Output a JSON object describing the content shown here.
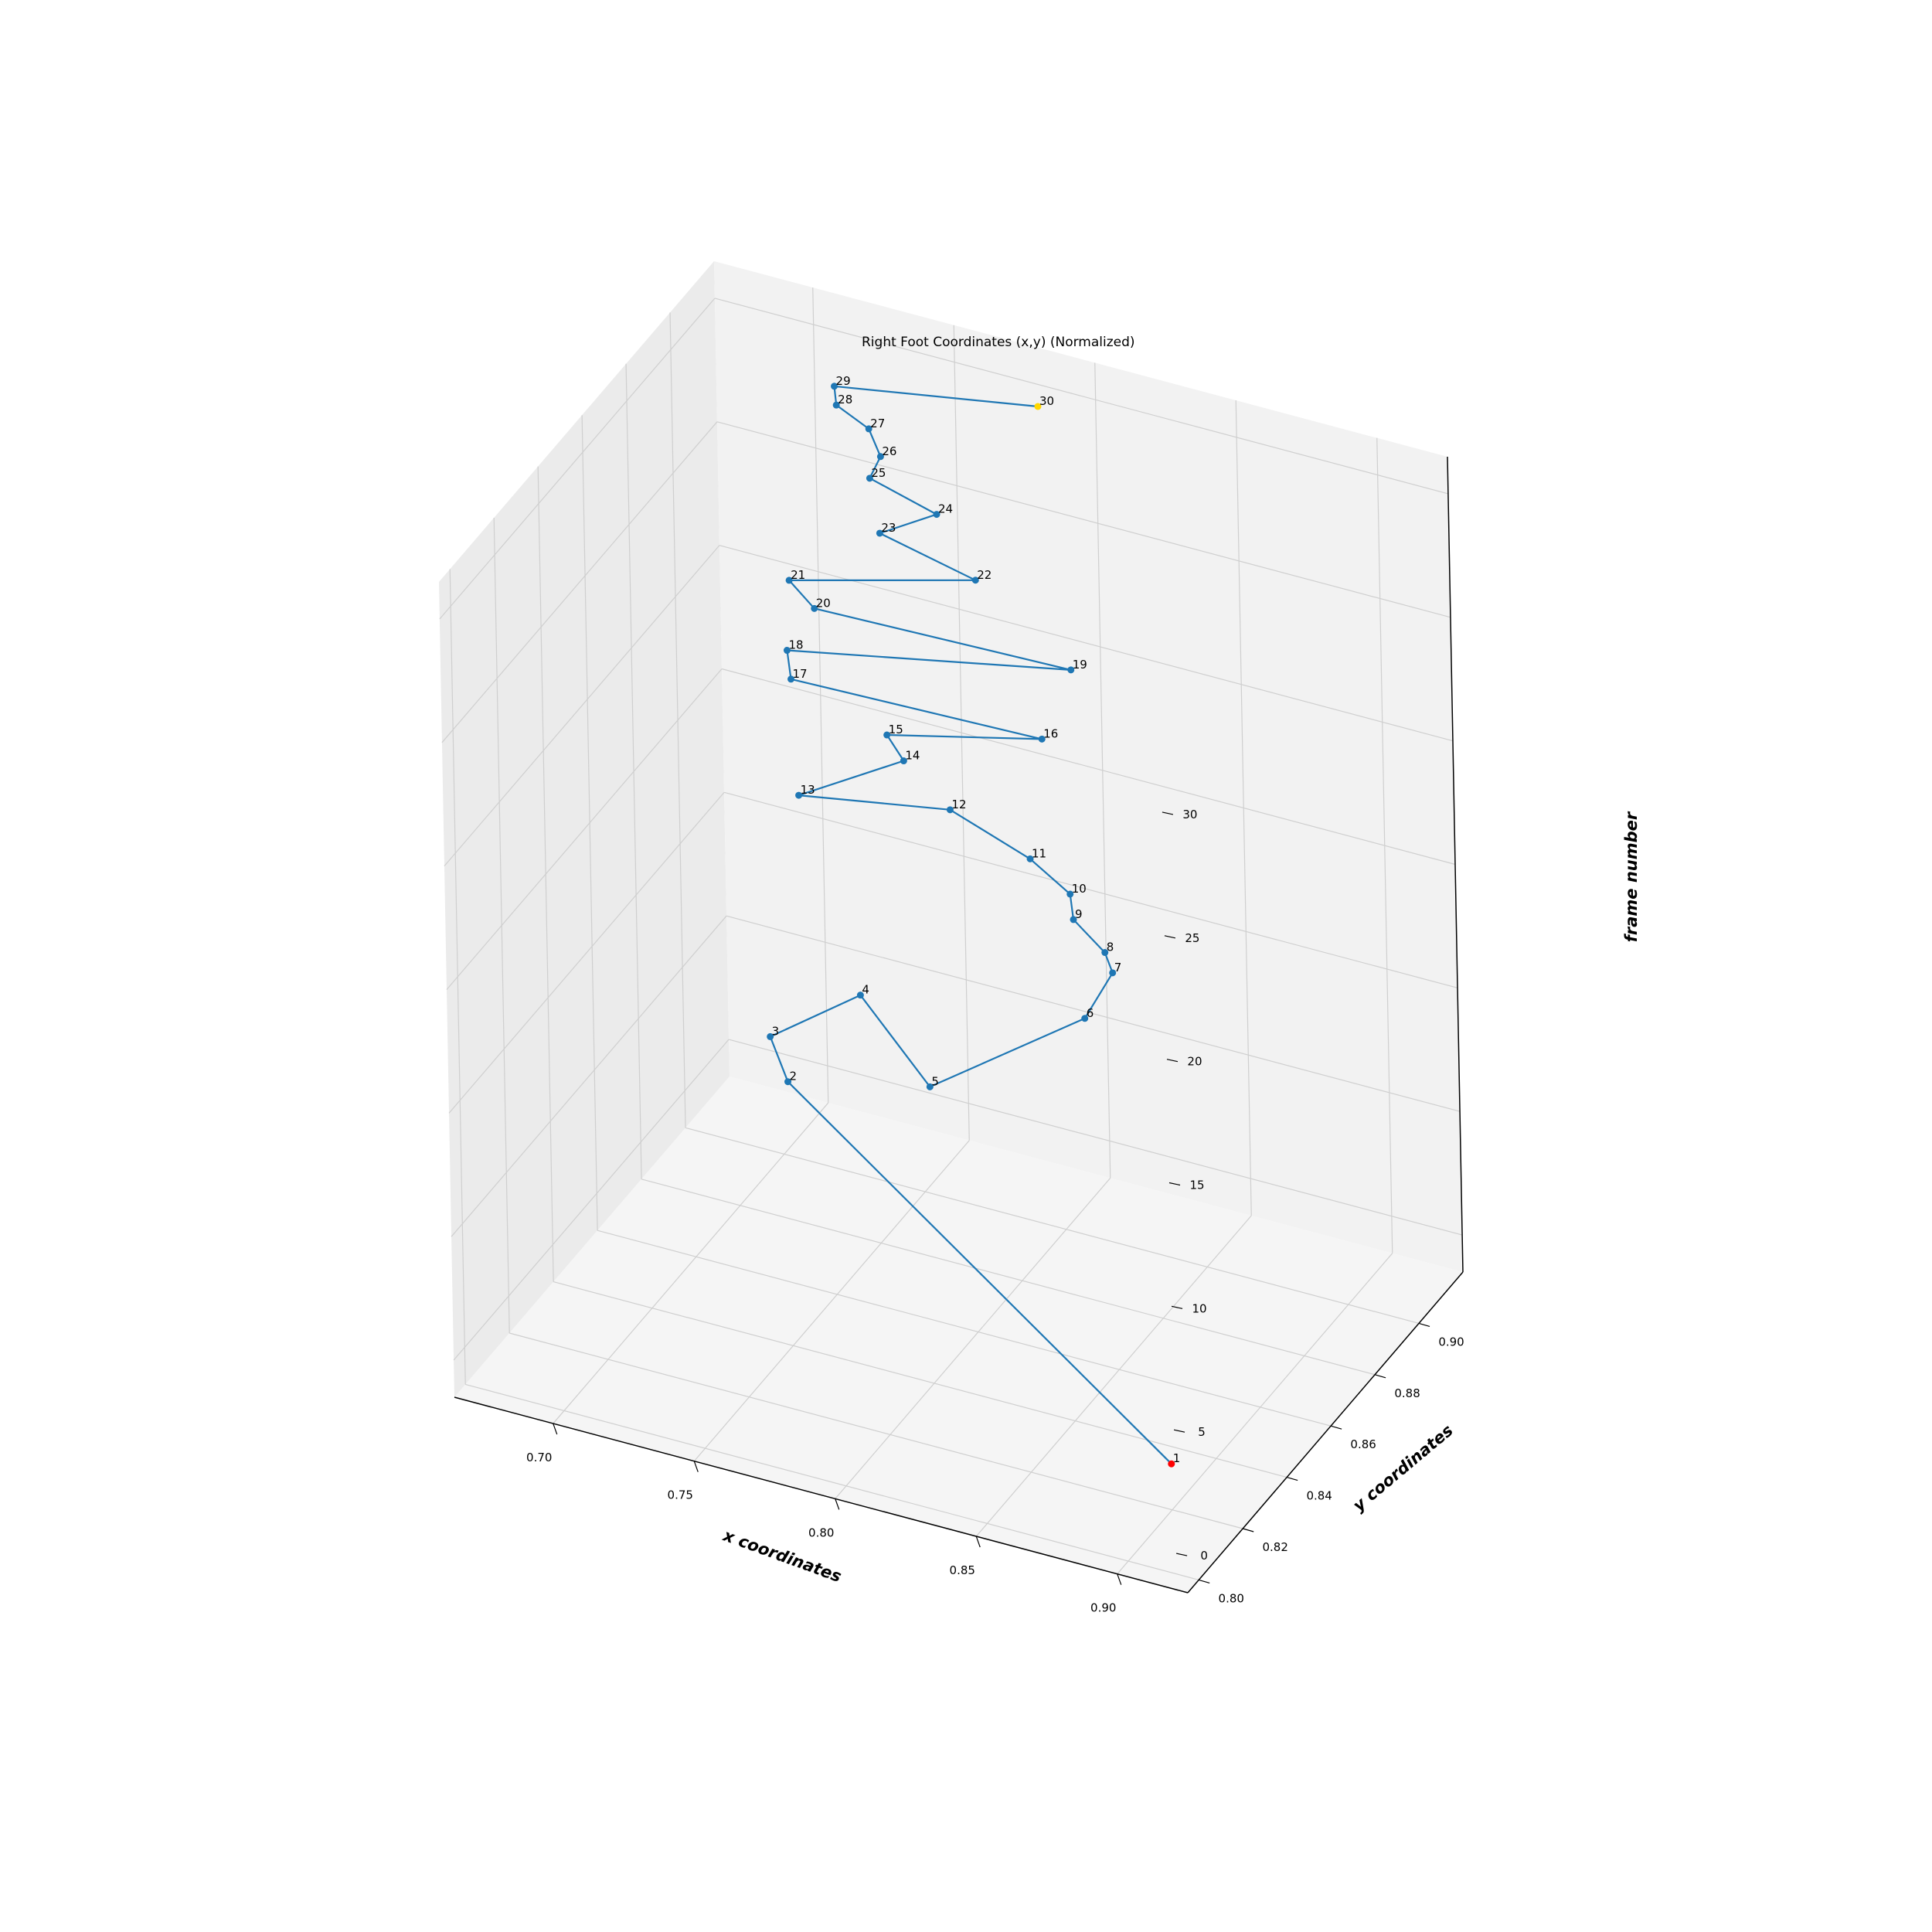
{
  "chart_data": {
    "type": "scatter",
    "projection": "3d",
    "title": "Right Foot Coordinates (x,y) (Normalized)",
    "xlabel": "x coordinates",
    "ylabel": "y coordinates",
    "zlabel": "frame number",
    "xlim": [
      0.665,
      0.925
    ],
    "ylim": [
      0.795,
      0.92
    ],
    "zlim": [
      -1.5,
      31.5
    ],
    "x_ticks": [
      "0.70",
      "0.75",
      "0.80",
      "0.85",
      "0.90"
    ],
    "y_ticks": [
      "0.80",
      "0.82",
      "0.84",
      "0.86",
      "0.88",
      "0.90"
    ],
    "z_ticks": [
      "0",
      "5",
      "10",
      "15",
      "20",
      "25",
      "30"
    ],
    "grid": true,
    "colors": {
      "line": "#1f77b4",
      "points": "#1f77b4",
      "first_point": "#ff0000",
      "last_point": "#ffd700",
      "pane_back": "#f2f2f2",
      "pane_side": "#ebebeb",
      "pane_floor": "#f5f5f5",
      "grid": "#cfcfcf"
    },
    "series": [
      {
        "points": [
          {
            "label": "1",
            "x": 0.904,
            "y": 0.815,
            "z": 1
          },
          {
            "label": "2",
            "x": 0.705,
            "y": 0.896,
            "z": 2
          },
          {
            "label": "3",
            "x": 0.695,
            "y": 0.901,
            "z": 3
          },
          {
            "label": "4",
            "x": 0.717,
            "y": 0.914,
            "z": 4
          },
          {
            "label": "5",
            "x": 0.766,
            "y": 0.883,
            "z": 5
          },
          {
            "label": "6",
            "x": 0.8,
            "y": 0.91,
            "z": 6
          },
          {
            "label": "7",
            "x": 0.803,
            "y": 0.919,
            "z": 7
          },
          {
            "label": "8",
            "x": 0.802,
            "y": 0.917,
            "z": 8
          },
          {
            "label": "9",
            "x": 0.791,
            "y": 0.917,
            "z": 9
          },
          {
            "label": "10",
            "x": 0.79,
            "y": 0.917,
            "z": 10
          },
          {
            "label": "11",
            "x": 0.776,
            "y": 0.917,
            "z": 11
          },
          {
            "label": "12",
            "x": 0.747,
            "y": 0.918,
            "z": 12
          },
          {
            "label": "13",
            "x": 0.706,
            "y": 0.902,
            "z": 13
          },
          {
            "label": "14",
            "x": 0.734,
            "y": 0.914,
            "z": 14
          },
          {
            "label": "15",
            "x": 0.729,
            "y": 0.913,
            "z": 15
          },
          {
            "label": "16",
            "x": 0.781,
            "y": 0.917,
            "z": 16
          },
          {
            "label": "17",
            "x": 0.7,
            "y": 0.907,
            "z": 17
          },
          {
            "label": "18",
            "x": 0.698,
            "y": 0.908,
            "z": 18
          },
          {
            "label": "19",
            "x": 0.791,
            "y": 0.918,
            "z": 19
          },
          {
            "label": "20",
            "x": 0.708,
            "y": 0.908,
            "z": 20
          },
          {
            "label": "21",
            "x": 0.7,
            "y": 0.907,
            "z": 21
          },
          {
            "label": "22",
            "x": 0.76,
            "y": 0.915,
            "z": 22
          },
          {
            "label": "23",
            "x": 0.727,
            "y": 0.914,
            "z": 23
          },
          {
            "label": "24",
            "x": 0.745,
            "y": 0.917,
            "z": 24
          },
          {
            "label": "25",
            "x": 0.723,
            "y": 0.915,
            "z": 25
          },
          {
            "label": "26",
            "x": 0.727,
            "y": 0.915,
            "z": 26
          },
          {
            "label": "27",
            "x": 0.723,
            "y": 0.915,
            "z": 27
          },
          {
            "label": "28",
            "x": 0.714,
            "y": 0.912,
            "z": 28
          },
          {
            "label": "29",
            "x": 0.715,
            "y": 0.91,
            "z": 29
          },
          {
            "label": "30",
            "x": 0.785,
            "y": 0.913,
            "z": 30
          }
        ]
      }
    ]
  }
}
